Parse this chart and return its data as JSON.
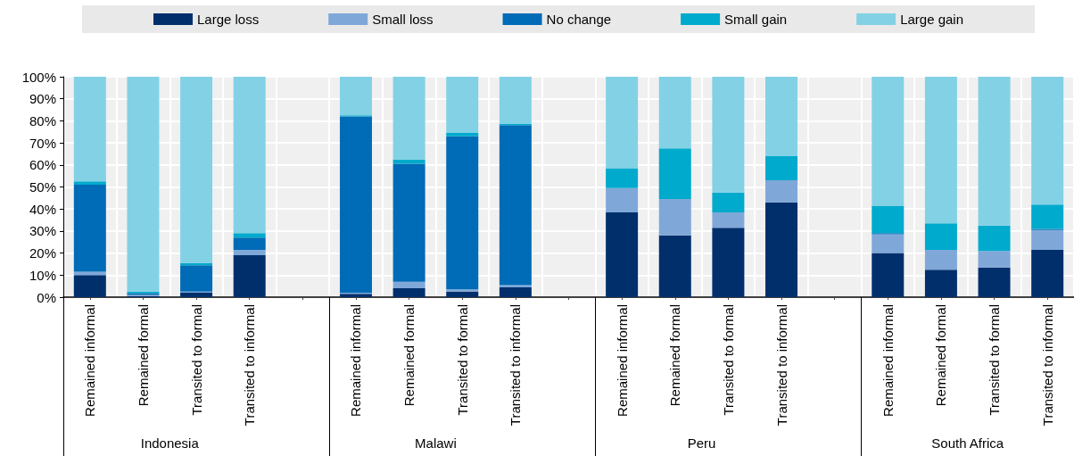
{
  "chart_data": {
    "type": "bar",
    "stacked": true,
    "grid": true,
    "legend": "top",
    "categories": [
      "Remained informal",
      "Remained formal",
      "Transited to formal",
      "Transited to informal",
      null,
      "Remained informal",
      "Remained formal",
      "Transited to formal",
      "Transited to informal",
      null,
      "Remained informal",
      "Remained formal",
      "Transited to formal",
      "Transited to informal",
      null,
      "Remained informal",
      "Remained formal",
      "Transited to formal",
      "Transited to informal"
    ],
    "series": [
      {
        "name": "Large loss",
        "color": "#002f6c",
        "values": [
          10,
          0.5,
          2,
          19,
          null,
          1.5,
          4,
          2.5,
          4.5,
          null,
          38.5,
          28,
          31.5,
          43,
          null,
          20,
          12.5,
          13.5,
          21.5
        ]
      },
      {
        "name": "Small loss",
        "color": "#7fa8d9",
        "values": [
          1.5,
          0.5,
          0.5,
          2.5,
          null,
          0.5,
          3,
          1,
          1,
          null,
          11,
          16.5,
          7,
          10,
          null,
          8.5,
          9,
          7.5,
          9
        ]
      },
      {
        "name": "No change",
        "color": "#006bb6",
        "values": [
          39.5,
          0.8,
          12,
          5.5,
          null,
          80,
          53.5,
          69.5,
          72.5,
          null,
          0,
          0,
          0,
          0,
          null,
          0.5,
          0,
          0,
          0.5
        ]
      },
      {
        "name": "Small gain",
        "color": "#00aacc",
        "values": [
          1.5,
          0.7,
          1,
          2,
          null,
          0.5,
          2,
          1.5,
          0.5,
          null,
          9,
          23,
          9,
          11,
          null,
          12.5,
          12,
          11.5,
          11
        ]
      },
      {
        "name": "Large gain",
        "color": "#83d1e5",
        "values": [
          47.5,
          97.5,
          84.5,
          71,
          null,
          17.5,
          37.5,
          25.5,
          21.5,
          null,
          41.5,
          32.5,
          52.5,
          36,
          null,
          58.5,
          66.5,
          67.5,
          58
        ]
      }
    ],
    "ylim": [
      0,
      100
    ],
    "yticks": [
      {
        "value": 0,
        "label": "0%"
      },
      {
        "value": 10,
        "label": "10%"
      },
      {
        "value": 20,
        "label": "20%"
      },
      {
        "value": 30,
        "label": "30%"
      },
      {
        "value": 40,
        "label": "40%"
      },
      {
        "value": 50,
        "label": "50%"
      },
      {
        "value": 60,
        "label": "60%"
      },
      {
        "value": 70,
        "label": "70%"
      },
      {
        "value": 80,
        "label": "80%"
      },
      {
        "value": 90,
        "label": "90%"
      },
      {
        "value": 100,
        "label": "100%"
      }
    ],
    "annotations": [
      "Indonesia",
      "Malawi",
      "Peru",
      "South Africa"
    ]
  }
}
